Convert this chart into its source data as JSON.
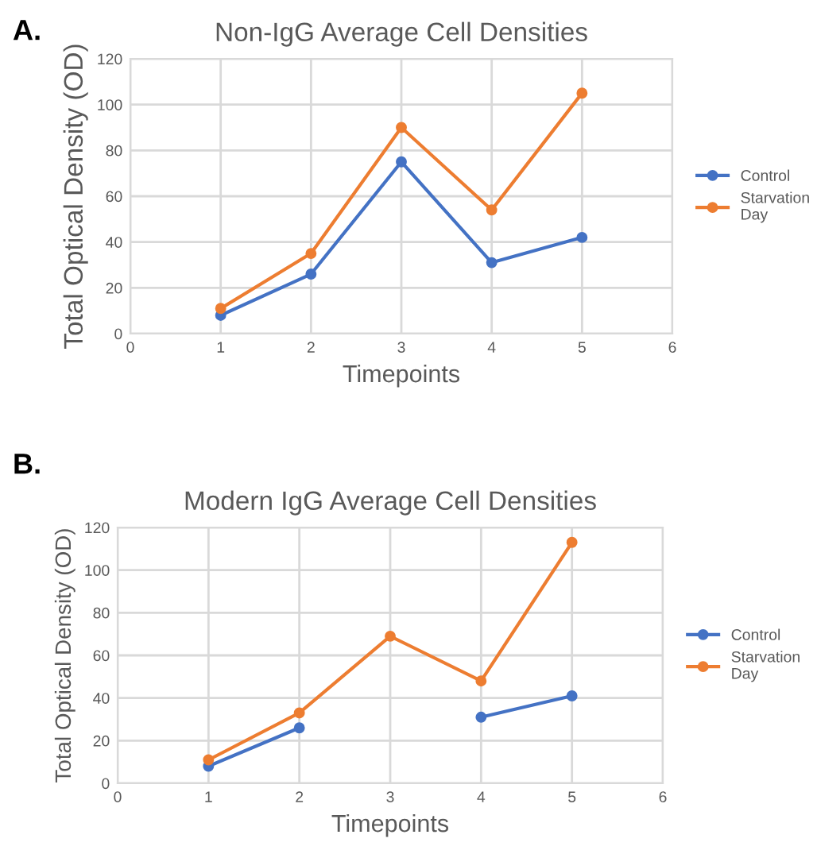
{
  "chart_data": [
    {
      "type": "line",
      "title": "Non-IgG Average Cell Densities",
      "xlabel": "Timepoints",
      "ylabel": "Total Optical Density (OD)",
      "annotations": [
        "A."
      ],
      "x": [
        1,
        2,
        3,
        4,
        5
      ],
      "series": [
        {
          "name": "Control",
          "color": "#4472c4",
          "values": [
            8,
            26,
            75,
            31,
            42
          ]
        },
        {
          "name": "Starvation\nDay",
          "color": "#ed7d31",
          "values": [
            11,
            35,
            90,
            54,
            105
          ]
        }
      ],
      "xlim": [
        0,
        6
      ],
      "xticks": [
        0,
        1,
        2,
        3,
        4,
        5,
        6
      ],
      "ylim": [
        0,
        120
      ],
      "yticks": [
        0,
        20,
        40,
        60,
        80,
        100,
        120
      ],
      "grid": true,
      "legend": "right",
      "marker": "circle",
      "line_style": "solid"
    },
    {
      "type": "line",
      "title": "Modern IgG Average Cell Densities",
      "xlabel": "Timepoints",
      "ylabel": "Total Optical Density (OD)",
      "annotations": [
        "B."
      ],
      "x": [
        1,
        2,
        3,
        4,
        5
      ],
      "series": [
        {
          "name": "Control",
          "color": "#4472c4",
          "values": [
            8,
            26,
            null,
            31,
            41
          ]
        },
        {
          "name": "Starvation\nDay",
          "color": "#ed7d31",
          "values": [
            11,
            33,
            69,
            48,
            113
          ]
        }
      ],
      "xlim": [
        0,
        6
      ],
      "xticks": [
        0,
        1,
        2,
        3,
        4,
        5,
        6
      ],
      "ylim": [
        0,
        120
      ],
      "yticks": [
        0,
        20,
        40,
        60,
        80,
        100,
        120
      ],
      "grid": true,
      "legend": "right",
      "marker": "circle",
      "line_style": "solid"
    }
  ]
}
